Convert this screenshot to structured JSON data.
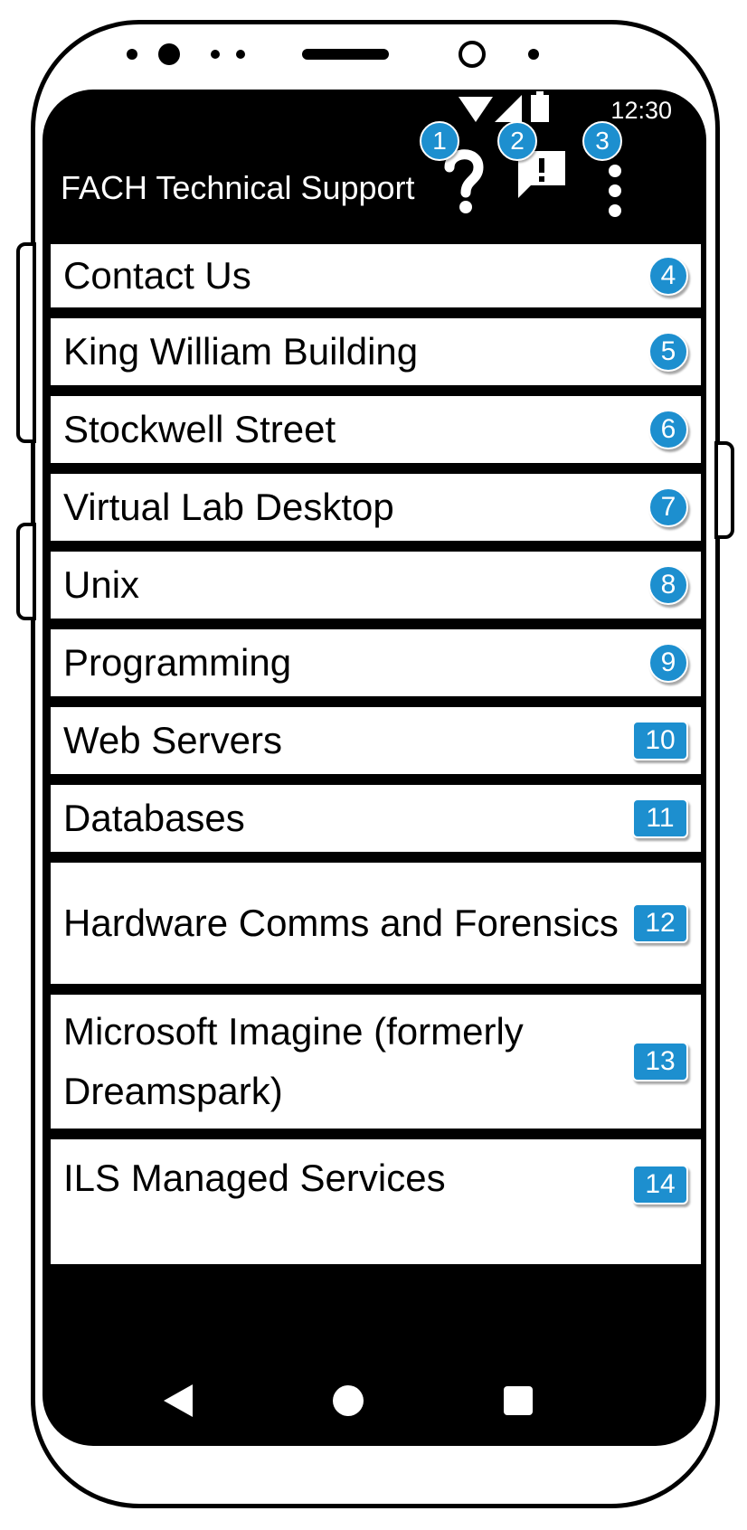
{
  "status_bar": {
    "time": "12:30",
    "wifi_icon": "wifi-icon",
    "signal_icon": "signal-icon",
    "battery_icon": "battery-icon"
  },
  "app_bar": {
    "title": "FACH Technical Support",
    "actions": [
      {
        "icon": "help-icon",
        "annotation": "1"
      },
      {
        "icon": "feedback-icon",
        "annotation": "2"
      },
      {
        "icon": "overflow-menu-icon",
        "annotation": "3"
      }
    ]
  },
  "list": {
    "items": [
      {
        "label": "Contact Us",
        "badge": "4"
      },
      {
        "label": "King William Building",
        "badge": "5"
      },
      {
        "label": "Stockwell Street",
        "badge": "6"
      },
      {
        "label": "Virtual Lab Desktop",
        "badge": "7"
      },
      {
        "label": "Unix",
        "badge": "8"
      },
      {
        "label": "Programming",
        "badge": "9"
      },
      {
        "label": "Web Servers",
        "badge": "10"
      },
      {
        "label": "Databases",
        "badge": "11"
      },
      {
        "label": "Hardware Comms and Forensics",
        "badge": "12"
      },
      {
        "label": "Microsoft Imagine (formerly Dreamspark)",
        "badge": "13"
      },
      {
        "label": "ILS Managed Services",
        "badge": "14"
      }
    ]
  },
  "nav_bar": {
    "back_icon": "back-icon",
    "home_icon": "home-icon",
    "recents_icon": "recents-icon"
  },
  "colors": {
    "accent": "#1d8fcf",
    "bar": "#000000",
    "surface": "#ffffff"
  }
}
